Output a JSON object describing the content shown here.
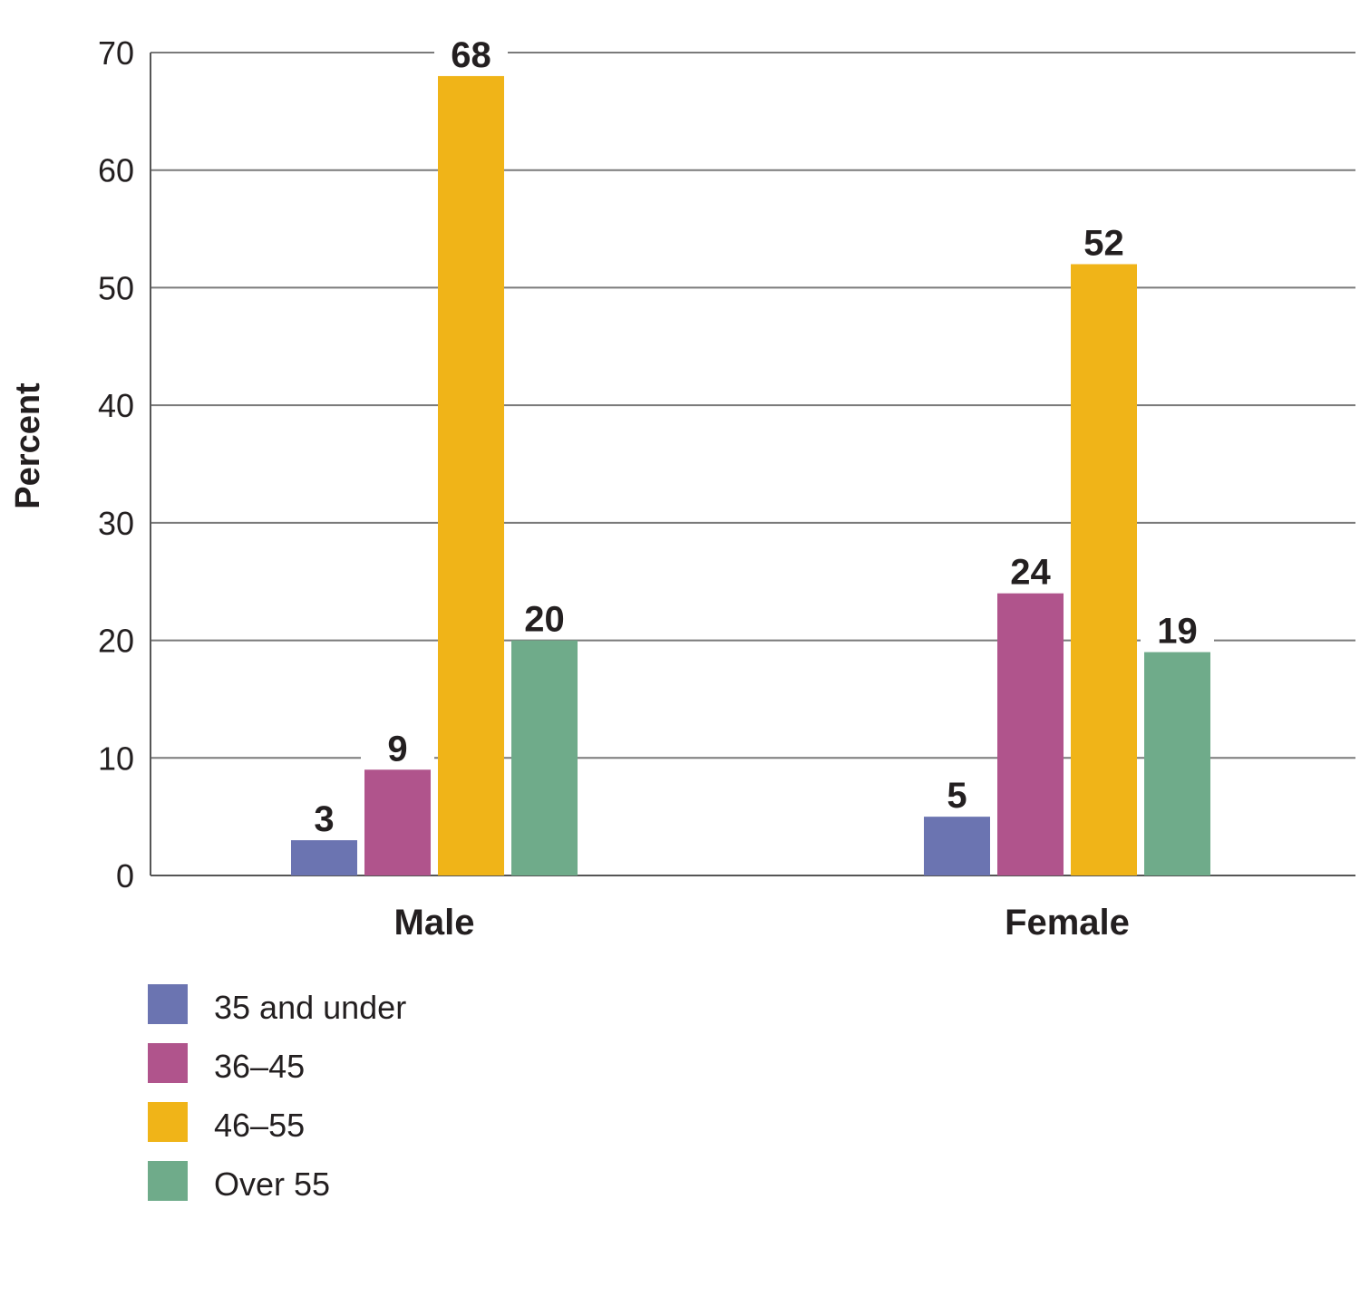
{
  "chart_data": {
    "type": "bar",
    "title": "",
    "xlabel": "",
    "ylabel": "Percent",
    "ylim": [
      0,
      70
    ],
    "yticks": [
      0,
      10,
      20,
      30,
      40,
      50,
      60,
      70
    ],
    "grid": true,
    "legend_placement": "bottom-left",
    "categories": [
      "Male",
      "Female"
    ],
    "series": [
      {
        "name": "35 and under",
        "color": "#6b74b1",
        "values": [
          3,
          5
        ]
      },
      {
        "name": "36–45",
        "color": "#b0548c",
        "values": [
          9,
          24
        ]
      },
      {
        "name": "46–55",
        "color": "#f0b418",
        "values": [
          68,
          52
        ]
      },
      {
        "name": "Over 55",
        "color": "#6fab8a",
        "values": [
          20,
          19
        ]
      }
    ]
  }
}
